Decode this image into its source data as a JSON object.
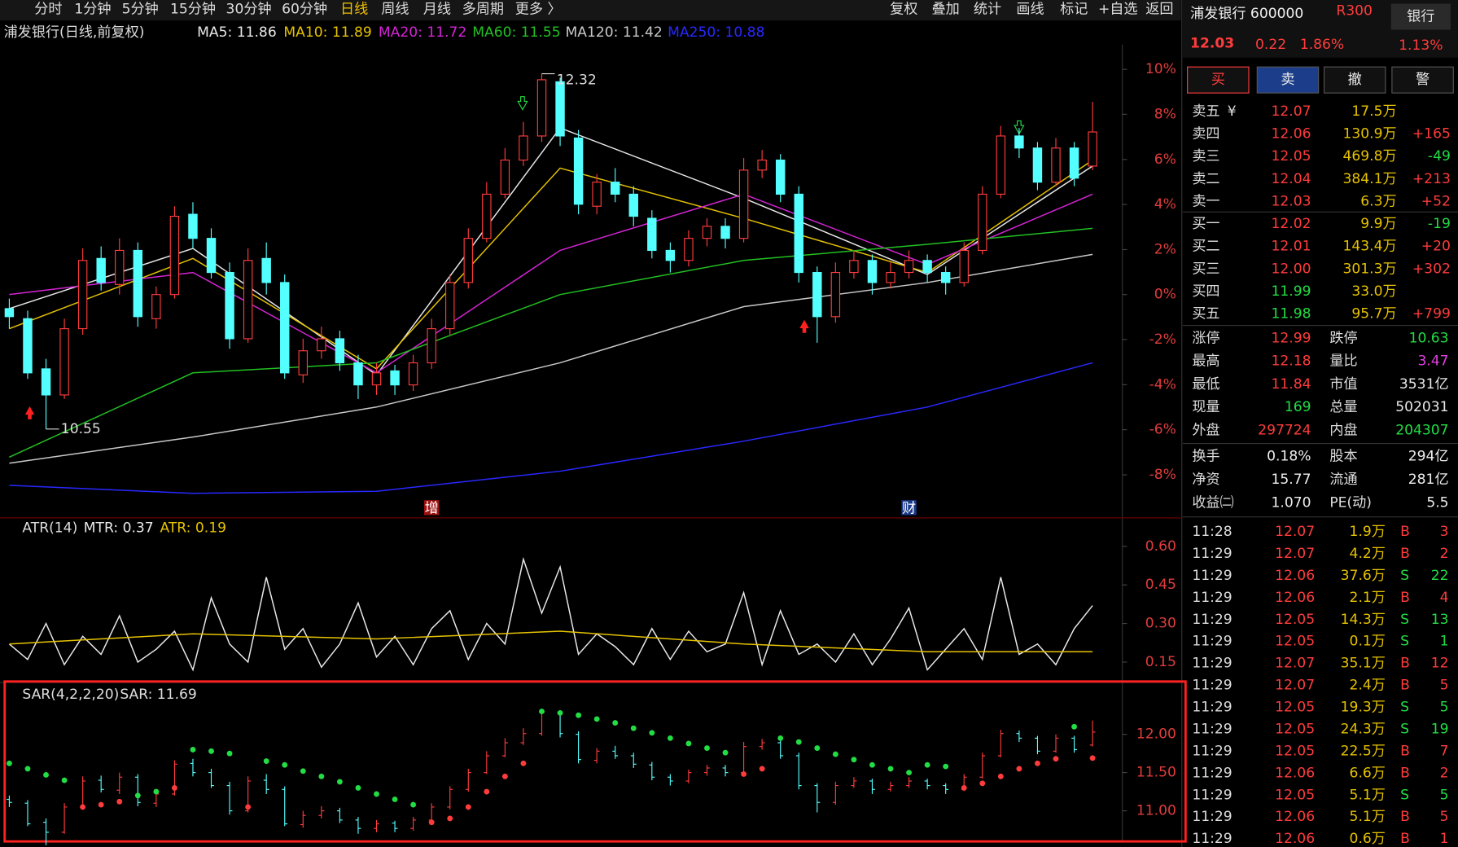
{
  "toolbar": {
    "periods": [
      "分时",
      "1分钟",
      "5分钟",
      "15分钟",
      "30分钟",
      "60分钟",
      "日线",
      "周线",
      "月线",
      "多周期",
      "更多 〉"
    ],
    "active": 6,
    "tools": [
      "复权",
      "叠加",
      "统计",
      "画线",
      "标记",
      "+自选",
      "返回"
    ]
  },
  "chart_header": {
    "title": "浦发银行(日线,前复权)"
  },
  "chart_data": [
    {
      "type": "candlestick",
      "up_color": "#ff3c3c",
      "down_color": "#54ffff",
      "candles": [
        [
          11.15,
          11.2,
          11.05,
          11.11
        ],
        [
          11.1,
          11.14,
          10.8,
          10.83
        ],
        [
          10.85,
          10.9,
          10.55,
          10.72
        ],
        [
          10.72,
          11.1,
          10.7,
          11.05
        ],
        [
          11.05,
          11.45,
          11.02,
          11.39
        ],
        [
          11.4,
          11.46,
          11.24,
          11.28
        ],
        [
          11.27,
          11.5,
          11.22,
          11.44
        ],
        [
          11.44,
          11.48,
          11.06,
          11.11
        ],
        [
          11.1,
          11.26,
          11.05,
          11.22
        ],
        [
          11.22,
          11.66,
          11.2,
          11.61
        ],
        [
          11.62,
          11.68,
          11.45,
          11.5
        ],
        [
          11.5,
          11.55,
          11.3,
          11.33
        ],
        [
          11.33,
          11.38,
          10.95,
          11.0
        ],
        [
          11.0,
          11.45,
          10.98,
          11.39
        ],
        [
          11.4,
          11.48,
          11.22,
          11.28
        ],
        [
          11.28,
          11.32,
          10.8,
          10.83
        ],
        [
          10.82,
          11.0,
          10.78,
          10.94
        ],
        [
          10.94,
          11.06,
          10.9,
          11.0
        ],
        [
          11.0,
          11.04,
          10.84,
          10.88
        ],
        [
          10.88,
          10.92,
          10.7,
          10.77
        ],
        [
          10.77,
          10.88,
          10.72,
          10.83
        ],
        [
          10.84,
          10.87,
          10.72,
          10.77
        ],
        [
          10.77,
          10.92,
          10.74,
          10.88
        ],
        [
          10.88,
          11.1,
          10.85,
          11.05
        ],
        [
          11.05,
          11.32,
          11.02,
          11.28
        ],
        [
          11.28,
          11.55,
          11.25,
          11.5
        ],
        [
          11.5,
          11.78,
          11.48,
          11.72
        ],
        [
          11.72,
          11.95,
          11.7,
          11.89
        ],
        [
          11.89,
          12.08,
          11.86,
          12.01
        ],
        [
          12.01,
          12.32,
          11.98,
          12.29
        ],
        [
          12.28,
          12.3,
          11.96,
          12.01
        ],
        [
          12.0,
          12.04,
          11.62,
          11.67
        ],
        [
          11.66,
          11.82,
          11.62,
          11.78
        ],
        [
          11.78,
          11.85,
          11.68,
          11.72
        ],
        [
          11.72,
          11.76,
          11.56,
          11.61
        ],
        [
          11.6,
          11.64,
          11.4,
          11.44
        ],
        [
          11.44,
          11.48,
          11.33,
          11.39
        ],
        [
          11.39,
          11.54,
          11.36,
          11.5
        ],
        [
          11.5,
          11.6,
          11.46,
          11.56
        ],
        [
          11.56,
          11.6,
          11.45,
          11.5
        ],
        [
          11.5,
          11.9,
          11.48,
          11.84
        ],
        [
          11.84,
          11.94,
          11.8,
          11.89
        ],
        [
          11.89,
          11.92,
          11.68,
          11.72
        ],
        [
          11.72,
          11.76,
          11.28,
          11.33
        ],
        [
          11.33,
          11.36,
          10.98,
          11.11
        ],
        [
          11.11,
          11.38,
          11.08,
          11.33
        ],
        [
          11.33,
          11.44,
          11.3,
          11.39
        ],
        [
          11.39,
          11.42,
          11.22,
          11.28
        ],
        [
          11.28,
          11.38,
          11.25,
          11.33
        ],
        [
          11.33,
          11.44,
          11.3,
          11.39
        ],
        [
          11.39,
          11.42,
          11.28,
          11.33
        ],
        [
          11.33,
          11.36,
          11.22,
          11.28
        ],
        [
          11.28,
          11.48,
          11.26,
          11.44
        ],
        [
          11.44,
          11.76,
          11.42,
          11.72
        ],
        [
          11.72,
          12.06,
          11.7,
          12.01
        ],
        [
          12.01,
          12.05,
          11.9,
          11.95
        ],
        [
          11.95,
          11.98,
          11.74,
          11.78
        ],
        [
          11.78,
          12.0,
          11.76,
          11.95
        ],
        [
          11.95,
          11.98,
          11.76,
          11.8
        ],
        [
          11.86,
          12.18,
          11.84,
          12.03
        ]
      ],
      "series": [
        {
          "name": "MA5: 11.86",
          "color": "#e8e8e8",
          "x": [
            0,
            10,
            20,
            30,
            40,
            50,
            59
          ],
          "values": [
            11.15,
            11.45,
            10.82,
            12.05,
            11.7,
            11.32,
            11.86
          ]
        },
        {
          "name": "MA10: 11.89",
          "color": "#e6c200",
          "x": [
            0,
            10,
            20,
            30,
            40,
            50,
            59
          ],
          "values": [
            11.05,
            11.4,
            10.85,
            11.85,
            11.6,
            11.33,
            11.89
          ]
        },
        {
          "name": "MA20: 11.72",
          "color": "#d424d4",
          "x": [
            0,
            10,
            20,
            30,
            40,
            50,
            59
          ],
          "values": [
            11.22,
            11.33,
            10.83,
            11.44,
            11.72,
            11.37,
            11.72
          ]
        },
        {
          "name": "MA60: 11.55",
          "color": "#22c022",
          "x": [
            0,
            10,
            20,
            30,
            40,
            50,
            59
          ],
          "values": [
            10.41,
            10.83,
            10.88,
            11.22,
            11.39,
            11.47,
            11.55
          ]
        },
        {
          "name": "MA120: 11.42",
          "color": "#c8c8c8",
          "x": [
            0,
            10,
            20,
            30,
            40,
            50,
            59
          ],
          "values": [
            10.38,
            10.51,
            10.66,
            10.88,
            11.16,
            11.28,
            11.42
          ]
        },
        {
          "name": "MA250: 10.88",
          "color": "#2828ff",
          "x": [
            0,
            10,
            20,
            30,
            40,
            50,
            59
          ],
          "values": [
            10.27,
            10.23,
            10.24,
            10.34,
            10.49,
            10.66,
            10.88
          ]
        }
      ],
      "annotations": [
        {
          "label": "12.32",
          "value": 12.32,
          "x": 29
        },
        {
          "label": "10.55",
          "value": 10.55,
          "x": 2
        }
      ],
      "events": [
        {
          "label": "增",
          "x": 23
        },
        {
          "label": "财",
          "x": 49
        }
      ],
      "ylim": [
        10.117,
        12.465
      ],
      "yticks": [
        {
          "value": 12.342,
          "label": "10%"
        },
        {
          "value": 12.118,
          "label": "8%"
        },
        {
          "value": 11.893,
          "label": "6%"
        },
        {
          "value": 11.669,
          "label": "4%"
        },
        {
          "value": 11.444,
          "label": "2%"
        },
        {
          "value": 11.22,
          "label": "0%"
        },
        {
          "value": 10.996,
          "label": "-2%"
        },
        {
          "value": 10.771,
          "label": "-4%"
        },
        {
          "value": 10.547,
          "label": "-6%"
        },
        {
          "value": 10.322,
          "label": "-8%"
        }
      ]
    },
    {
      "type": "line",
      "title": "ATR(14)",
      "series": [
        {
          "name": "MTR: 0.37",
          "color": "#e8e8e8",
          "values": [
            0.22,
            0.16,
            0.3,
            0.14,
            0.25,
            0.18,
            0.33,
            0.15,
            0.2,
            0.27,
            0.12,
            0.4,
            0.22,
            0.15,
            0.48,
            0.2,
            0.28,
            0.13,
            0.22,
            0.38,
            0.17,
            0.25,
            0.14,
            0.28,
            0.35,
            0.16,
            0.3,
            0.22,
            0.55,
            0.34,
            0.52,
            0.18,
            0.26,
            0.21,
            0.14,
            0.28,
            0.16,
            0.27,
            0.19,
            0.22,
            0.42,
            0.14,
            0.35,
            0.18,
            0.22,
            0.15,
            0.26,
            0.14,
            0.24,
            0.36,
            0.12,
            0.2,
            0.28,
            0.16,
            0.48,
            0.18,
            0.22,
            0.14,
            0.28,
            0.37
          ]
        },
        {
          "name": "ATR: 0.19",
          "color": "#e6c200",
          "x": [
            0,
            10,
            20,
            30,
            40,
            50,
            59
          ],
          "values": [
            0.22,
            0.26,
            0.24,
            0.27,
            0.22,
            0.19,
            0.19
          ]
        }
      ],
      "ylim": [
        0.078,
        0.7
      ],
      "yticks": [
        {
          "value": 0.6,
          "label": "0.60"
        },
        0.45,
        {
          "value": 0.3,
          "label": "0.30"
        },
        0.15
      ]
    },
    {
      "type": "sar",
      "title": "SAR(4,2,2,20)",
      "label": "SAR: 11.69",
      "above_color": "#22dd44",
      "below_color": "#ff3c3c",
      "values": [
        11.62,
        11.55,
        11.47,
        11.4,
        11.05,
        11.08,
        11.12,
        11.2,
        11.25,
        11.3,
        11.8,
        11.78,
        11.75,
        11.05,
        11.65,
        11.6,
        11.52,
        11.45,
        11.38,
        11.3,
        11.22,
        11.15,
        11.08,
        10.85,
        10.9,
        11.05,
        11.25,
        11.45,
        11.62,
        12.3,
        12.28,
        12.25,
        12.2,
        12.15,
        12.08,
        12.02,
        11.95,
        11.88,
        11.82,
        11.76,
        11.48,
        11.55,
        11.95,
        11.9,
        11.82,
        11.74,
        11.67,
        11.6,
        11.55,
        11.5,
        11.6,
        11.58,
        11.3,
        11.36,
        11.45,
        11.55,
        11.62,
        11.68,
        12.1,
        11.69
      ],
      "ylim": [
        10.6,
        12.63
      ],
      "yticks": [
        {
          "value": 12,
          "label": "12.00"
        },
        {
          "value": 11.5,
          "label": "11.50"
        },
        {
          "value": 11,
          "label": "11.00"
        }
      ]
    }
  ],
  "quote": {
    "name": "浦发银行 600000",
    "tag": "R300",
    "sector": "银行",
    "sector_change": "1.13%",
    "price": "12.03",
    "change": "0.22",
    "change_pct": "1.86%",
    "buttons": [
      "买",
      "卖",
      "撤",
      "警"
    ]
  },
  "order_book": [
    {
      "label": "卖五",
      "currency": "¥",
      "price": "12.07",
      "volume": "17.5万",
      "delta": "",
      "price_color": "#ff3c3c"
    },
    {
      "label": "卖四",
      "price": "12.06",
      "volume": "130.9万",
      "delta": "+165",
      "price_color": "#ff3c3c"
    },
    {
      "label": "卖三",
      "price": "12.05",
      "volume": "469.8万",
      "delta": "-49",
      "price_color": "#ff3c3c"
    },
    {
      "label": "卖二",
      "price": "12.04",
      "volume": "384.1万",
      "delta": "+213",
      "price_color": "#ff3c3c"
    },
    {
      "label": "卖一",
      "price": "12.03",
      "volume": "6.3万",
      "delta": "+52",
      "price_color": "#ff3c3c"
    },
    {
      "label": "买一",
      "price": "12.02",
      "volume": "9.9万",
      "delta": "-19",
      "price_color": "#ff3c3c"
    },
    {
      "label": "买二",
      "price": "12.01",
      "volume": "143.4万",
      "delta": "+20",
      "price_color": "#ff3c3c"
    },
    {
      "label": "买三",
      "price": "12.00",
      "volume": "301.3万",
      "delta": "+302",
      "price_color": "#ff3c3c"
    },
    {
      "label": "买四",
      "price": "11.99",
      "volume": "33.0万",
      "delta": "",
      "price_color": "#22dd44"
    },
    {
      "label": "买五",
      "price": "11.98",
      "volume": "95.7万",
      "delta": "+799",
      "price_color": "#22dd44"
    }
  ],
  "stats": [
    [
      {
        "label": "涨停",
        "value": "12.99",
        "color": "#ff3c3c"
      },
      {
        "label": "跌停",
        "value": "10.63",
        "color": "#22dd44"
      }
    ],
    [
      {
        "label": "最高",
        "value": "12.18",
        "color": "#ff3c3c"
      },
      {
        "label": "量比",
        "value": "3.47",
        "color": "#e040e0"
      }
    ],
    [
      {
        "label": "最低",
        "value": "11.84",
        "color": "#ff3c3c"
      },
      {
        "label": "市值",
        "value": "3531亿",
        "color": "#e8e8e8"
      }
    ],
    [
      {
        "label": "现量",
        "value": "169",
        "color": "#22dd44"
      },
      {
        "label": "总量",
        "value": "502031",
        "color": "#e8e8e8"
      }
    ],
    [
      {
        "label": "外盘",
        "value": "297724",
        "color": "#ff3c3c"
      },
      {
        "label": "内盘",
        "value": "204307",
        "color": "#22dd44"
      }
    ]
  ],
  "fundamentals": [
    [
      {
        "label": "换手",
        "value": "0.18%"
      },
      {
        "label": "股本",
        "value": "294亿"
      }
    ],
    [
      {
        "label": "净资",
        "value": "15.77"
      },
      {
        "label": "流通",
        "value": "281亿"
      }
    ],
    [
      {
        "label": "收益㈡",
        "value": "1.070"
      },
      {
        "label": "PE(动)",
        "value": "5.5"
      }
    ]
  ],
  "trades": [
    [
      "11:28",
      "12.07",
      "1.9万",
      "B",
      "3"
    ],
    [
      "11:29",
      "12.07",
      "4.2万",
      "B",
      "2"
    ],
    [
      "11:29",
      "12.06",
      "37.6万",
      "S",
      "22"
    ],
    [
      "11:29",
      "12.06",
      "2.1万",
      "B",
      "4"
    ],
    [
      "11:29",
      "12.05",
      "14.3万",
      "S",
      "13"
    ],
    [
      "11:29",
      "12.05",
      "0.1万",
      "S",
      "1"
    ],
    [
      "11:29",
      "12.07",
      "35.1万",
      "B",
      "12"
    ],
    [
      "11:29",
      "12.07",
      "2.4万",
      "B",
      "5"
    ],
    [
      "11:29",
      "12.05",
      "19.3万",
      "S",
      "5"
    ],
    [
      "11:29",
      "12.05",
      "24.3万",
      "S",
      "19"
    ],
    [
      "11:29",
      "12.05",
      "22.5万",
      "B",
      "7"
    ],
    [
      "11:29",
      "12.06",
      "6.6万",
      "B",
      "2"
    ],
    [
      "11:29",
      "12.05",
      "5.1万",
      "S",
      "5"
    ],
    [
      "11:29",
      "12.06",
      "5.1万",
      "B",
      "5"
    ],
    [
      "11:29",
      "12.06",
      "0.6万",
      "B",
      "1"
    ]
  ]
}
